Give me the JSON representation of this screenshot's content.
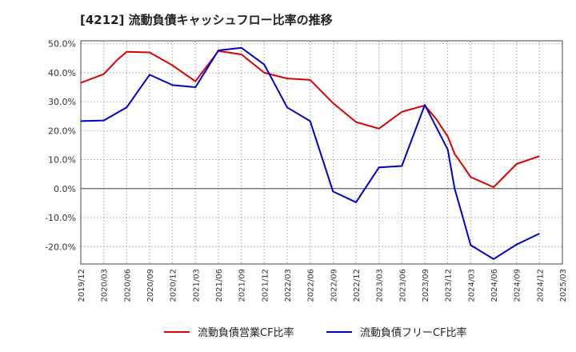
{
  "chart_data": {
    "type": "line",
    "title": "[4212]  流動負債キャッシュフロー比率の推移",
    "xlabel": "",
    "ylabel": "",
    "ylim": [
      -26,
      51
    ],
    "y_ticks": [
      {
        "value": 50,
        "label": "50.0%"
      },
      {
        "value": 40,
        "label": "40.0%"
      },
      {
        "value": 30,
        "label": "30.0%"
      },
      {
        "value": 20,
        "label": "20.0%"
      },
      {
        "value": 10,
        "label": "10.0%"
      },
      {
        "value": 0,
        "label": "0.0%"
      },
      {
        "value": -10,
        "label": "-10.0%"
      },
      {
        "value": -20,
        "label": "-20.0%"
      }
    ],
    "categories": [
      "2019/12",
      "2020/03",
      "2020/06",
      "2020/09",
      "2020/12",
      "2021/03",
      "2021/06",
      "2021/09",
      "2021/12",
      "2022/03",
      "2022/06",
      "2022/09",
      "2022/12",
      "2023/03",
      "2023/06",
      "2023/09",
      "2023/12",
      "2024/03",
      "2024/06",
      "2024/09",
      "2024/12",
      "2025/03"
    ],
    "series": [
      {
        "name": "流動負債営業CF比率",
        "color": "#dd0000",
        "points": [
          [
            0,
            36.5
          ],
          [
            1,
            39.5
          ],
          [
            1.6,
            44.5
          ],
          [
            2,
            47.2
          ],
          [
            3,
            47.0
          ],
          [
            4,
            42.5
          ],
          [
            5,
            37.0
          ],
          [
            6,
            47.5
          ],
          [
            7,
            46.3
          ],
          [
            8,
            40.0
          ],
          [
            9,
            38.0
          ],
          [
            10,
            37.5
          ],
          [
            11,
            29.5
          ],
          [
            12,
            23.0
          ],
          [
            13,
            20.7
          ],
          [
            14,
            26.5
          ],
          [
            15,
            28.7
          ],
          [
            15.5,
            24.0
          ],
          [
            16,
            18.0
          ],
          [
            16.3,
            12.0
          ],
          [
            16.7,
            7.5
          ],
          [
            17,
            4.0
          ],
          [
            18,
            0.5
          ],
          [
            19,
            8.5
          ],
          [
            20,
            11.2
          ]
        ]
      },
      {
        "name": "流動負債フリーCF比率",
        "color": "#0000cc",
        "points": [
          [
            0,
            23.3
          ],
          [
            1,
            23.5
          ],
          [
            2,
            28.0
          ],
          [
            3,
            39.3
          ],
          [
            4,
            35.7
          ],
          [
            5,
            35.0
          ],
          [
            6,
            47.7
          ],
          [
            7,
            48.6
          ],
          [
            8,
            42.8
          ],
          [
            9,
            28.0
          ],
          [
            10,
            23.3
          ],
          [
            11,
            -1.0
          ],
          [
            12,
            -4.7
          ],
          [
            13,
            7.3
          ],
          [
            14,
            7.8
          ],
          [
            15,
            28.9
          ],
          [
            16,
            13.5
          ],
          [
            16.3,
            0.0
          ],
          [
            16.7,
            -11.0
          ],
          [
            17,
            -19.5
          ],
          [
            18,
            -24.3
          ],
          [
            19,
            -19.3
          ],
          [
            20,
            -15.5
          ]
        ]
      }
    ],
    "legend_position": "bottom",
    "grid": true
  }
}
